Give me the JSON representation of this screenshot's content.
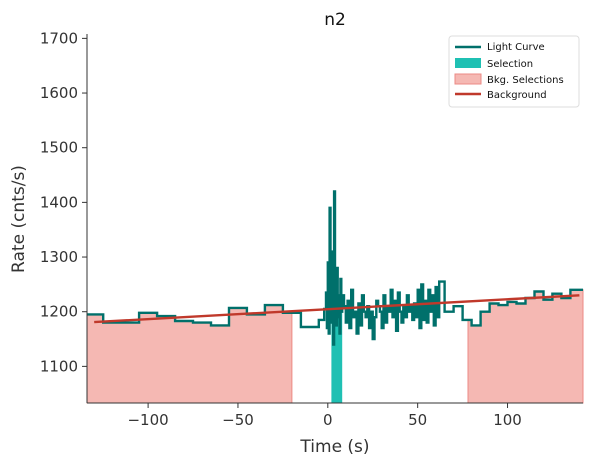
{
  "chart_data": {
    "type": "line",
    "title": "n2",
    "xlabel": "Time (s)",
    "ylabel": "Rate (cnts/s)",
    "xlim": [
      -134,
      142
    ],
    "ylim": [
      1033,
      1708
    ],
    "xticks": [
      -100,
      -50,
      0,
      50,
      100
    ],
    "yticks": [
      1100,
      1200,
      1300,
      1400,
      1500,
      1600,
      1700
    ],
    "xtick_labels": [
      "−100",
      "−50",
      "0",
      "50",
      "100"
    ],
    "ytick_labels": [
      "1100",
      "1200",
      "1300",
      "1400",
      "1500",
      "1600",
      "1700"
    ],
    "grid": false,
    "legend_position": "top-right",
    "legend": [
      {
        "label": "Light Curve",
        "kind": "line",
        "color": "#00706b"
      },
      {
        "label": "Selection",
        "kind": "patch",
        "color": "#1fc0b3"
      },
      {
        "label": "Bkg. Selections",
        "kind": "patch",
        "color": "#f5b8b3"
      },
      {
        "label": "Background",
        "kind": "line",
        "color": "#c0392b"
      }
    ],
    "series": [
      {
        "name": "Light Curve",
        "color": "#00706b",
        "drawstyle": "steps-post",
        "x": [
          -134,
          -125,
          -115,
          -105,
          -95,
          -85,
          -75,
          -65,
          -55,
          -45,
          -35,
          -25,
          -15,
          -5,
          -2,
          -1,
          -0.5,
          0,
          0.5,
          1,
          1.5,
          2,
          2.5,
          3,
          3.5,
          4,
          4.5,
          5,
          5.5,
          6,
          6.5,
          7,
          7.5,
          8,
          9,
          10,
          11,
          12,
          13,
          14,
          15,
          16,
          17,
          18,
          19,
          20,
          21,
          22,
          23,
          24,
          25,
          26,
          27,
          28,
          29,
          30,
          31,
          32,
          33,
          34,
          35,
          36,
          37,
          38,
          39,
          40,
          41,
          42,
          43,
          44,
          45,
          46,
          47,
          48,
          49,
          50,
          51,
          52,
          53,
          54,
          55,
          56,
          57,
          58,
          59,
          60,
          61,
          62,
          65,
          70,
          75,
          80,
          85,
          90,
          95,
          100,
          105,
          110,
          115,
          120,
          125,
          130,
          135,
          142
        ],
        "y": [
          1195,
          1180,
          1180,
          1198,
          1192,
          1183,
          1180,
          1175,
          1207,
          1195,
          1212,
          1198,
          1172,
          1185,
          1205,
          1235,
          1170,
          1290,
          1160,
          1390,
          1250,
          1180,
          1310,
          1140,
          1420,
          1200,
          1175,
          1280,
          1190,
          1230,
          1160,
          1260,
          1200,
          1230,
          1210,
          1180,
          1220,
          1170,
          1240,
          1190,
          1200,
          1160,
          1215,
          1175,
          1230,
          1200,
          1190,
          1210,
          1170,
          1200,
          1150,
          1190,
          1220,
          1210,
          1200,
          1170,
          1230,
          1180,
          1210,
          1200,
          1240,
          1190,
          1220,
          1165,
          1235,
          1200,
          1180,
          1210,
          1190,
          1230,
          1200,
          1210,
          1185,
          1215,
          1190,
          1240,
          1170,
          1250,
          1185,
          1220,
          1180,
          1240,
          1200,
          1230,
          1175,
          1245,
          1190,
          1255,
          1200,
          1210,
          1185,
          1175,
          1200,
          1215,
          1212,
          1218,
          1215,
          1225,
          1237,
          1222,
          1233,
          1225,
          1240,
          1240
        ]
      },
      {
        "name": "Background",
        "color": "#c0392b",
        "x": [
          -130,
          140
        ],
        "y": [
          1181,
          1230
        ]
      }
    ],
    "selection": {
      "x_start": 2,
      "x_end": 8
    },
    "bkg_selections": [
      {
        "x_start": -134,
        "x_end": -20
      },
      {
        "x_start": 78,
        "x_end": 142
      }
    ]
  }
}
